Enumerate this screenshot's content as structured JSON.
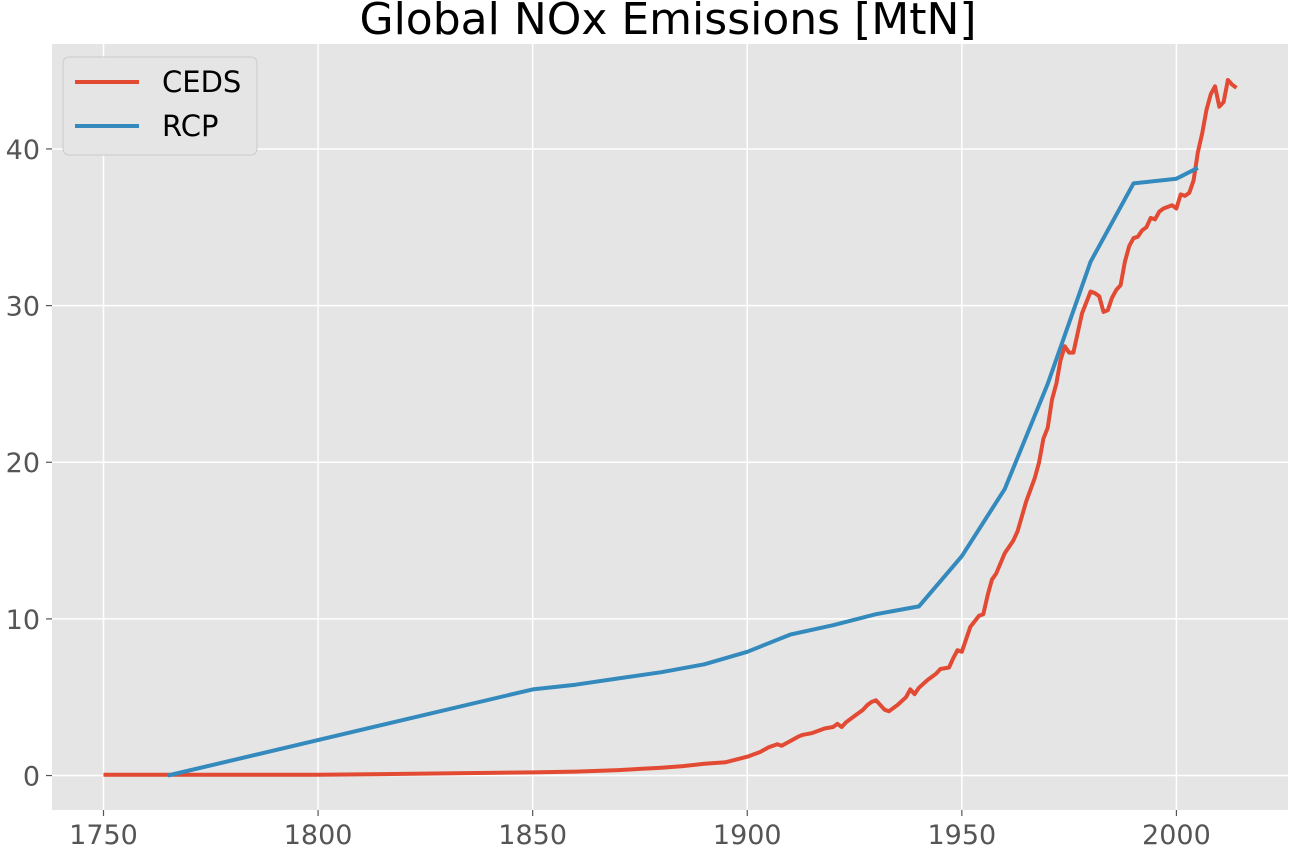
{
  "chart_data": {
    "type": "line",
    "title": "Global NOx Emissions [MtN]",
    "xlabel": "",
    "ylabel": "",
    "xlim": [
      1738,
      2026
    ],
    "ylim": [
      -2.2,
      46.7
    ],
    "xticks": [
      1750,
      1800,
      1850,
      1900,
      1950,
      2000
    ],
    "yticks": [
      0,
      10,
      20,
      30,
      40
    ],
    "grid": true,
    "legend_position": "top-left",
    "series": [
      {
        "name": "CEDS",
        "color": "#E24A33",
        "x": [
          1750,
          1800,
          1850,
          1860,
          1870,
          1880,
          1885,
          1890,
          1895,
          1900,
          1903,
          1905,
          1907,
          1908,
          1910,
          1912,
          1913,
          1915,
          1917,
          1918,
          1920,
          1921,
          1922,
          1923,
          1925,
          1927,
          1928,
          1929,
          1930,
          1932,
          1933,
          1935,
          1937,
          1938,
          1939,
          1940,
          1942,
          1943,
          1944,
          1945,
          1947,
          1948,
          1949,
          1950,
          1952,
          1954,
          1955,
          1956,
          1957,
          1958,
          1960,
          1962,
          1963,
          1965,
          1967,
          1968,
          1969,
          1970,
          1971,
          1972,
          1973,
          1974,
          1975,
          1976,
          1978,
          1979,
          1980,
          1981,
          1982,
          1983,
          1984,
          1985,
          1986,
          1987,
          1988,
          1989,
          1990,
          1991,
          1992,
          1993,
          1994,
          1995,
          1996,
          1997,
          1998,
          1999,
          2000,
          2001,
          2002,
          2003,
          2004,
          2005,
          2006,
          2007,
          2008,
          2009,
          2010,
          2011,
          2012,
          2013,
          2014
        ],
        "values": [
          0.05,
          0.05,
          0.2,
          0.25,
          0.35,
          0.5,
          0.6,
          0.75,
          0.85,
          1.2,
          1.5,
          1.8,
          2.0,
          1.9,
          2.2,
          2.5,
          2.6,
          2.7,
          2.9,
          3.0,
          3.1,
          3.3,
          3.1,
          3.4,
          3.8,
          4.2,
          4.5,
          4.7,
          4.8,
          4.2,
          4.1,
          4.5,
          5.0,
          5.5,
          5.2,
          5.6,
          6.1,
          6.3,
          6.5,
          6.8,
          6.9,
          7.5,
          8.0,
          7.9,
          9.5,
          10.2,
          10.3,
          11.5,
          12.5,
          12.9,
          14.2,
          15.0,
          15.6,
          17.5,
          19.0,
          20.0,
          21.5,
          22.2,
          24.0,
          25.0,
          26.5,
          27.4,
          27.0,
          27.0,
          29.5,
          30.2,
          30.9,
          30.8,
          30.6,
          29.6,
          29.7,
          30.5,
          31.0,
          31.3,
          32.8,
          33.8,
          34.3,
          34.4,
          34.8,
          35.0,
          35.6,
          35.5,
          36.0,
          36.2,
          36.3,
          36.4,
          36.2,
          37.1,
          37.0,
          37.2,
          38.0,
          39.8,
          41.0,
          42.5,
          43.5,
          44.0,
          42.7,
          43.0,
          44.4,
          44.1,
          43.9
        ]
      },
      {
        "name": "RCP",
        "color": "#348ABD",
        "x": [
          1765,
          1850,
          1860,
          1870,
          1880,
          1890,
          1900,
          1910,
          1920,
          1930,
          1940,
          1950,
          1960,
          1970,
          1980,
          1990,
          2000,
          2005
        ],
        "values": [
          0.0,
          5.5,
          5.8,
          6.2,
          6.6,
          7.1,
          7.9,
          9.0,
          9.6,
          10.3,
          10.8,
          14.0,
          18.3,
          25.0,
          32.8,
          37.8,
          38.1,
          38.8
        ]
      }
    ]
  }
}
